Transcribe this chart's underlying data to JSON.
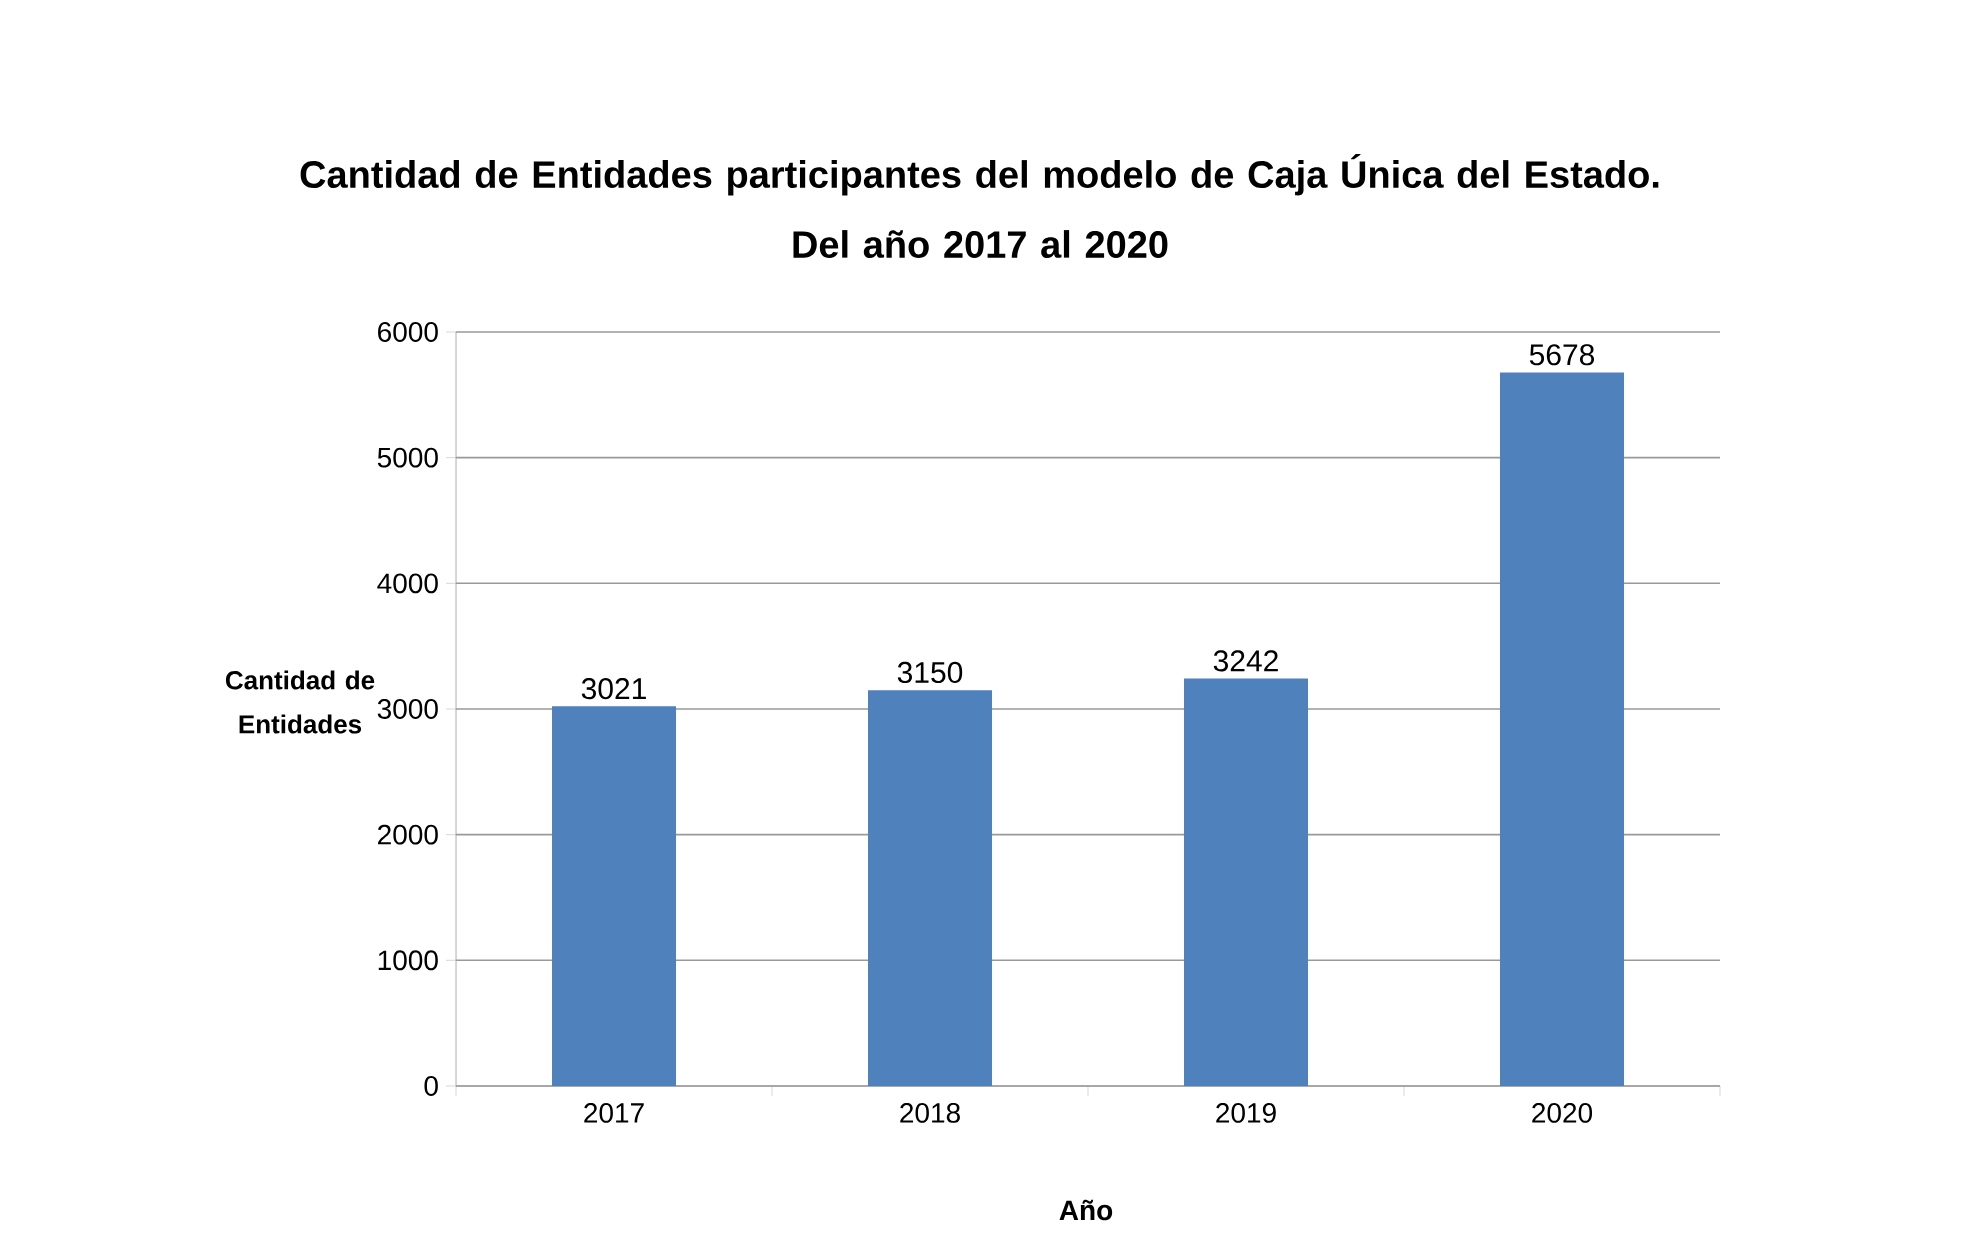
{
  "chart_data": {
    "type": "bar",
    "title": "Cantidad de Entidades participantes del modelo de Caja Única del Estado.",
    "subtitle": "Del año 2017 al 2020",
    "xlabel": "Año",
    "ylabel": "Cantidad de Entidades",
    "categories": [
      "2017",
      "2018",
      "2019",
      "2020"
    ],
    "values": [
      3021,
      3150,
      3242,
      5678
    ],
    "color": "#4f81bd",
    "ylim": [
      0,
      6000
    ],
    "yticks": [
      0,
      1000,
      2000,
      3000,
      4000,
      5000,
      6000
    ],
    "grid": "y",
    "data_labels": true
  }
}
